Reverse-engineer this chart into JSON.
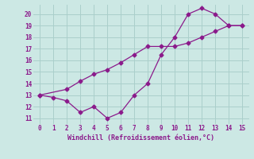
{
  "xlabel": "Windchill (Refroidissement éolien,°C)",
  "xlim": [
    -0.5,
    15.5
  ],
  "ylim": [
    10.5,
    20.8
  ],
  "xticks": [
    0,
    1,
    2,
    3,
    4,
    5,
    6,
    7,
    8,
    9,
    10,
    11,
    12,
    13,
    14,
    15
  ],
  "yticks": [
    11,
    12,
    13,
    14,
    15,
    16,
    17,
    18,
    19,
    20
  ],
  "bg_color": "#cce8e4",
  "grid_color": "#aacfcb",
  "line_color": "#8b1a8b",
  "line1_x": [
    0,
    1,
    2,
    3,
    4,
    5,
    6,
    7,
    8,
    9,
    10,
    11,
    12,
    13,
    14,
    15
  ],
  "line1_y": [
    13,
    12.8,
    12.5,
    11.5,
    12,
    11,
    11.5,
    13,
    14,
    16.5,
    18,
    20,
    20.5,
    20,
    19,
    19
  ],
  "line2_x": [
    0,
    2,
    3,
    4,
    5,
    6,
    7,
    8,
    9,
    10,
    11,
    12,
    13,
    14,
    15
  ],
  "line2_y": [
    13,
    13.5,
    14.2,
    14.8,
    15.2,
    15.8,
    16.5,
    17.2,
    17.2,
    17.2,
    17.5,
    18.0,
    18.5,
    19.0,
    19.0
  ]
}
